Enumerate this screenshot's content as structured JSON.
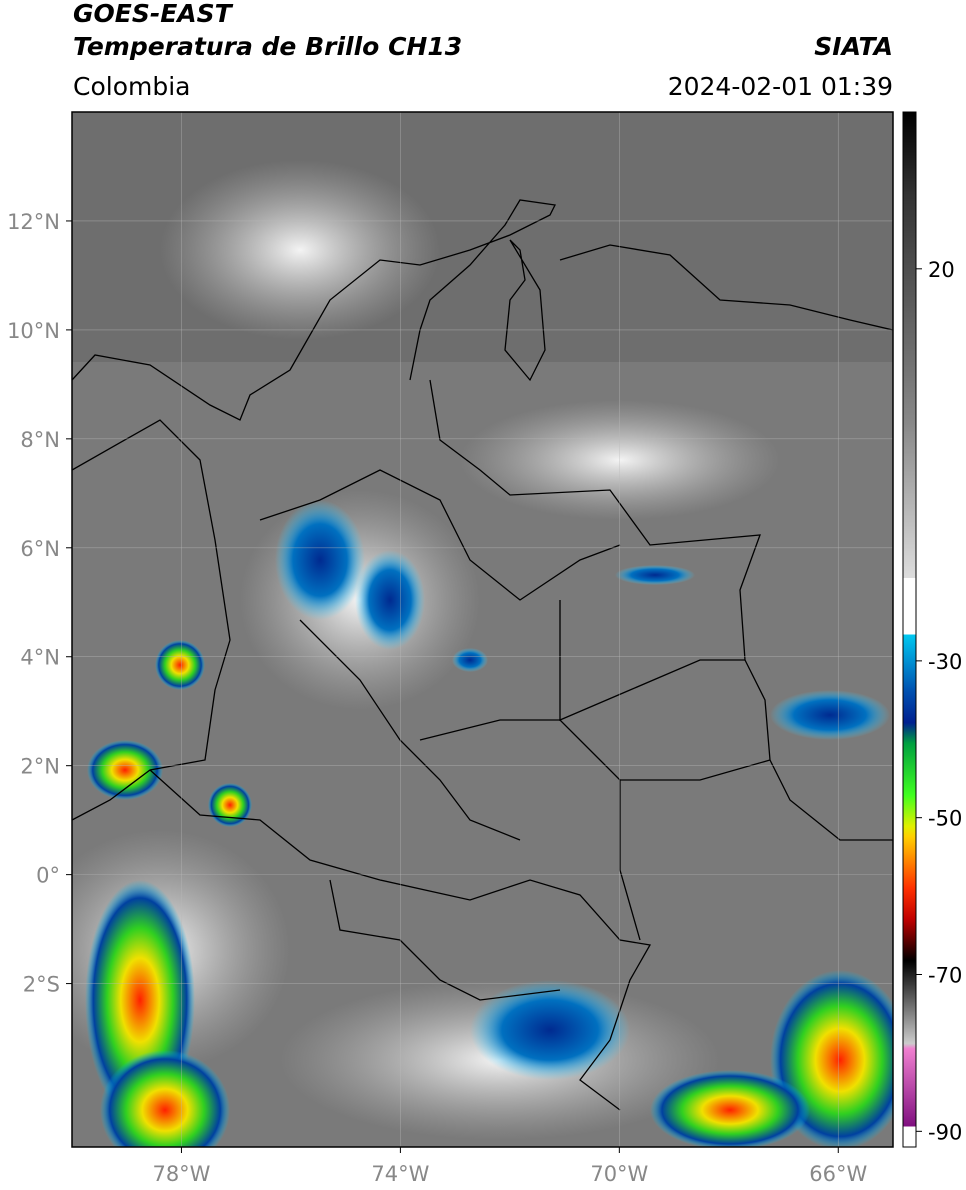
{
  "header": {
    "title": "GOES-EAST",
    "subtitle": "Temperatura de Brillo CH13",
    "source": "SIATA",
    "region": "Colombia",
    "timestamp": "2024-02-01 01:39"
  },
  "map": {
    "lonlim": [
      -80,
      -65
    ],
    "latlim": [
      -5,
      14
    ],
    "lon_ticks": [
      {
        "value": -78,
        "label": "78°W"
      },
      {
        "value": -74,
        "label": "74°W"
      },
      {
        "value": -70,
        "label": "70°W"
      },
      {
        "value": -66,
        "label": "66°W"
      }
    ],
    "lat_ticks": [
      {
        "value": -2,
        "label": "2°S"
      },
      {
        "value": 0,
        "label": "0°"
      },
      {
        "value": 2,
        "label": "2°N"
      },
      {
        "value": 4,
        "label": "4°N"
      },
      {
        "value": 6,
        "label": "6°N"
      },
      {
        "value": 8,
        "label": "8°N"
      },
      {
        "value": 10,
        "label": "10°N"
      },
      {
        "value": 12,
        "label": "12°N"
      }
    ]
  },
  "colorbar": {
    "lim": [
      -92,
      40
    ],
    "ticks": [
      20,
      -30,
      -50,
      -70,
      -90
    ]
  }
}
